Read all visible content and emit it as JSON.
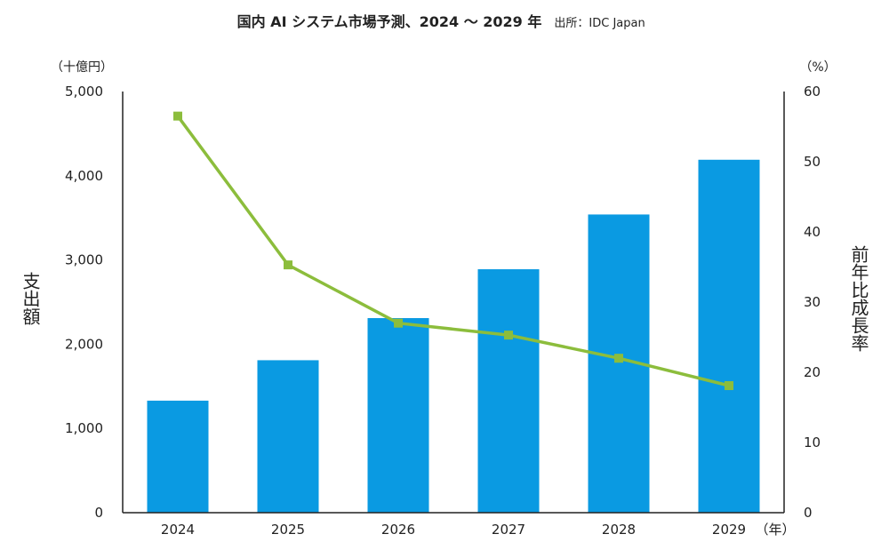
{
  "chart_data": {
    "type": "bar",
    "title": "国内 AI システム市場予測、2024 ～ 2029 年",
    "source": "出所：IDC Japan",
    "categories": [
      "2024",
      "2025",
      "2026",
      "2027",
      "2028",
      "2029"
    ],
    "x_unit": "（年）",
    "y_left": {
      "label": "支出額",
      "unit": "（十億円）",
      "range": [
        0,
        5000
      ],
      "ticks": [
        "0",
        "1,000",
        "2,000",
        "3,000",
        "4,000",
        "5,000"
      ]
    },
    "y_right": {
      "label": "前年比成長率",
      "unit": "（%）",
      "range": [
        0,
        60
      ],
      "ticks": [
        "0",
        "10",
        "20",
        "30",
        "40",
        "50",
        "60"
      ]
    },
    "series": [
      {
        "type": "bar",
        "axis": "left",
        "color": "#0a9ae2",
        "values": [
          1330,
          1810,
          2310,
          2890,
          3540,
          4190
        ]
      },
      {
        "type": "line",
        "axis": "right",
        "color": "#8cbd3c",
        "values": [
          56.5,
          35.3,
          27.0,
          25.3,
          22.0,
          18.1
        ]
      }
    ],
    "grid": false,
    "legend": "none"
  }
}
